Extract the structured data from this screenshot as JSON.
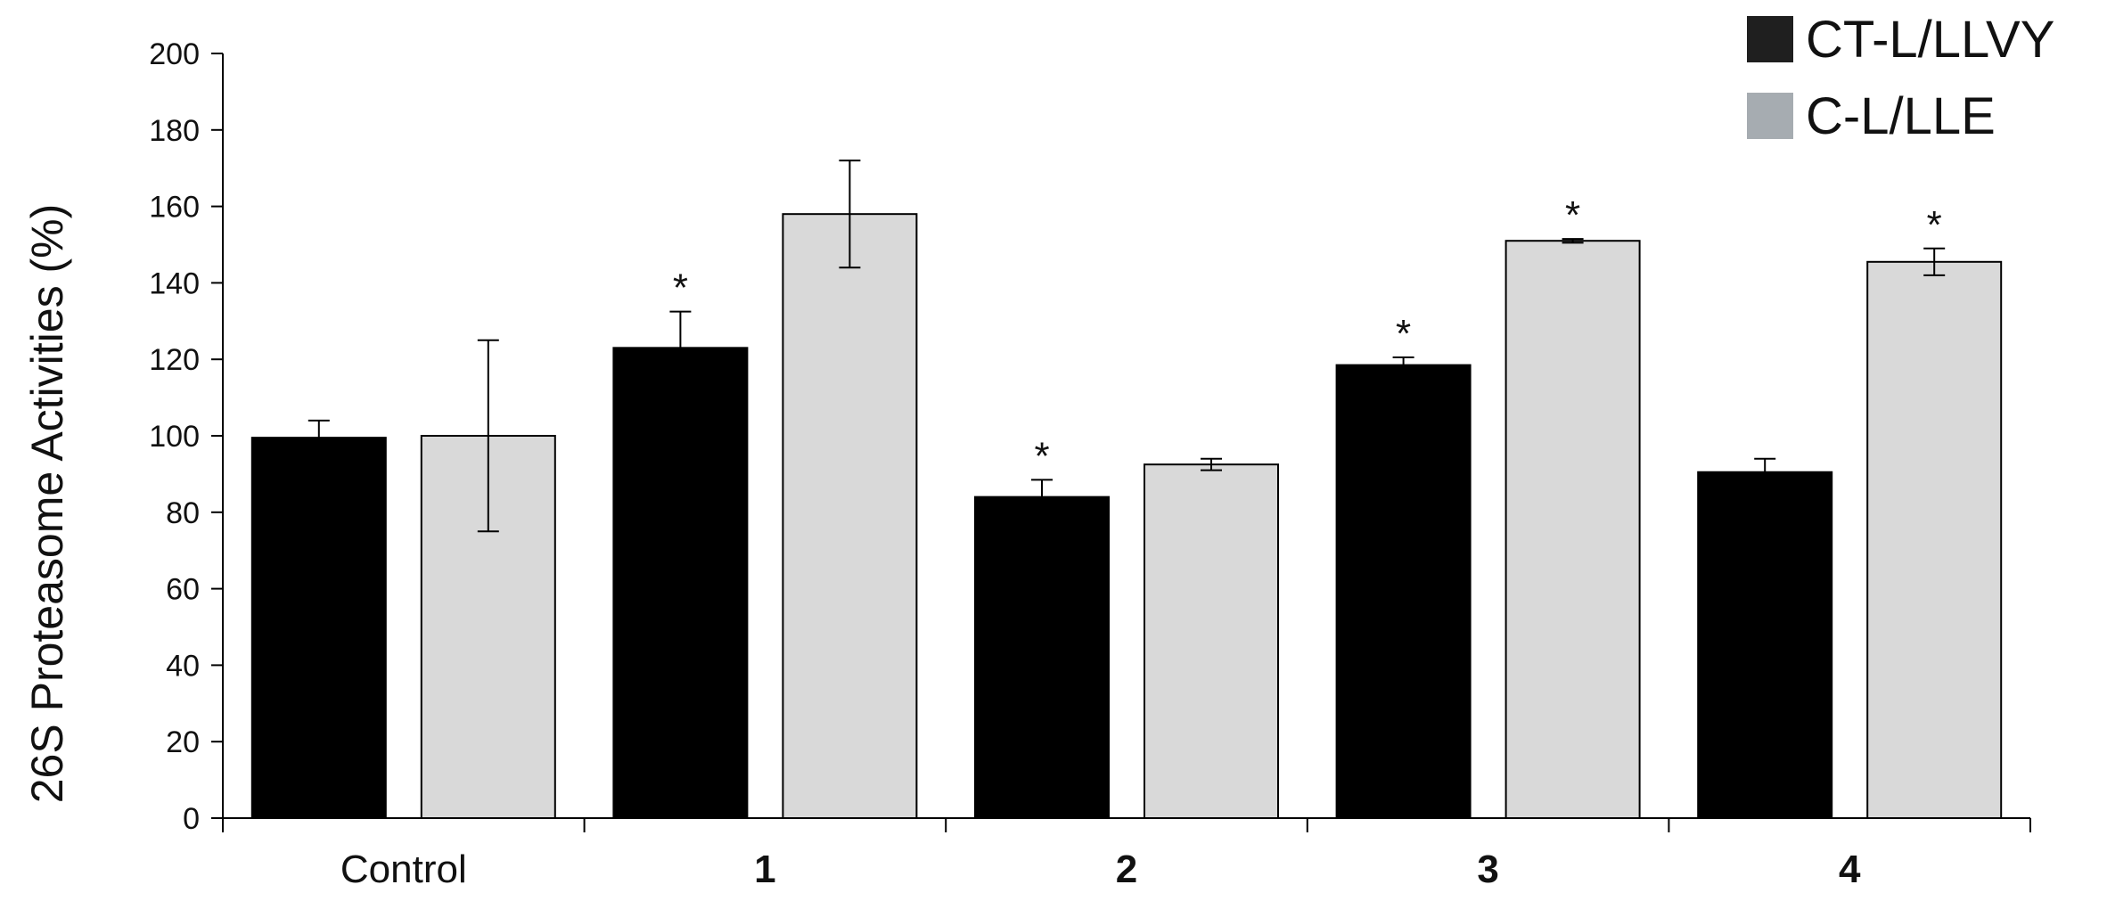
{
  "chart_data": {
    "type": "bar",
    "title": "",
    "xlabel": "",
    "ylabel": "26S Proteasome Activities  (%)",
    "ylim": [
      0,
      200
    ],
    "yticks": [
      0,
      20,
      40,
      60,
      80,
      100,
      120,
      140,
      160,
      180,
      200
    ],
    "categories": [
      "Control",
      "1",
      "2",
      "3",
      "4"
    ],
    "category_bold": [
      false,
      true,
      true,
      true,
      true
    ],
    "grid": false,
    "legend_position": "top-right",
    "series": [
      {
        "name": "CT-L/LLVY",
        "color": "#000000",
        "values": [
          99.5,
          123,
          84,
          118.5,
          90.5
        ],
        "errors": [
          4.5,
          9.5,
          4.5,
          2,
          3.5
        ],
        "significance": [
          "",
          "*",
          "*",
          "*",
          ""
        ]
      },
      {
        "name": "C-L/LLE",
        "color": "#d9d9d9",
        "values": [
          100,
          158,
          92.5,
          151,
          145.5
        ],
        "errors": [
          25,
          14,
          1.5,
          0.5,
          3.5
        ],
        "significance": [
          "",
          "",
          "",
          "*",
          "*"
        ]
      }
    ]
  }
}
